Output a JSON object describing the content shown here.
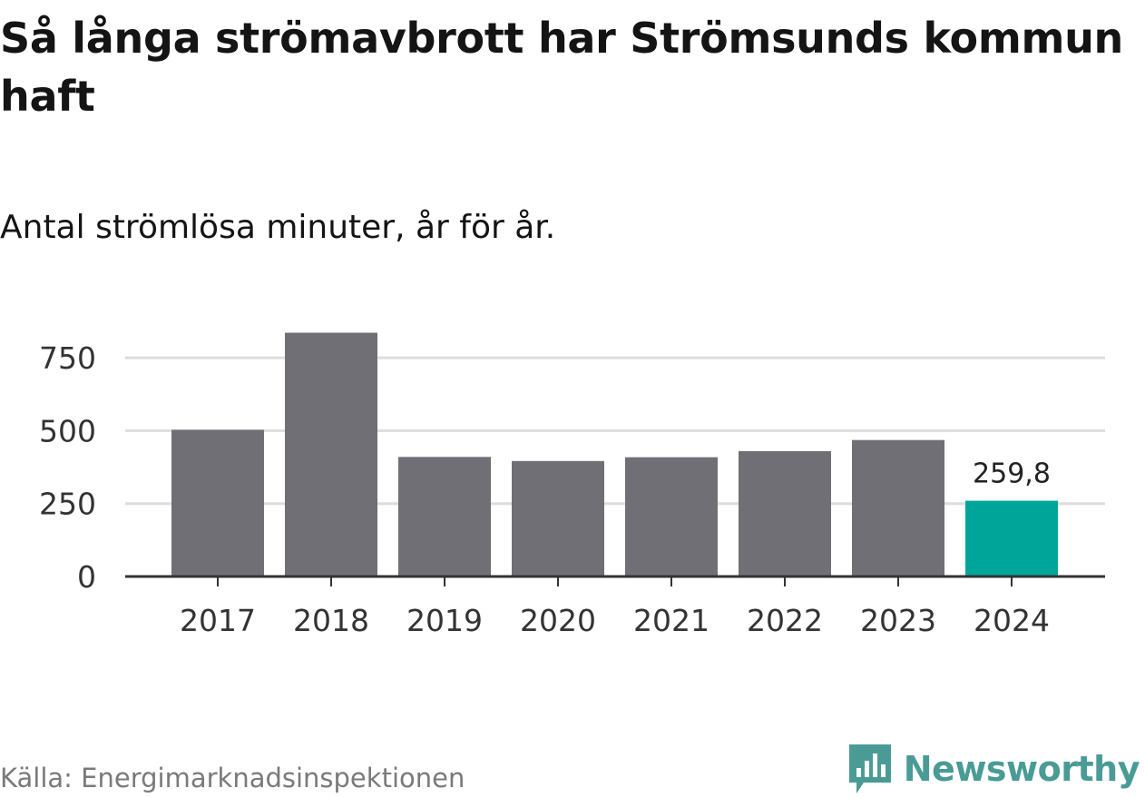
{
  "title": "Så långa strömavbrott har Strömsunds kommun haft",
  "subtitle": "Antal strömlösa minuter, år för år.",
  "source": "Källa: Energimarknadsinspektionen",
  "brand": "Newsworthy",
  "colors": {
    "bar": "#706f75",
    "highlight": "#00a59a",
    "grid": "#dddddd",
    "axis": "#333333",
    "brand": "#4a9b96"
  },
  "chart_data": {
    "type": "bar",
    "categories": [
      "2017",
      "2018",
      "2019",
      "2020",
      "2021",
      "2022",
      "2023",
      "2024"
    ],
    "values": [
      503,
      836,
      410,
      396,
      409,
      430,
      468,
      259.8
    ],
    "highlight_index": 7,
    "data_labels": [
      {
        "index": 7,
        "text": "259,8"
      }
    ],
    "yticks": [
      0,
      250,
      500,
      750
    ],
    "ytick_labels": [
      "0",
      "250",
      "500",
      "750"
    ],
    "ylim": [
      0,
      850
    ],
    "grid": true,
    "xlabel": "",
    "ylabel": ""
  }
}
